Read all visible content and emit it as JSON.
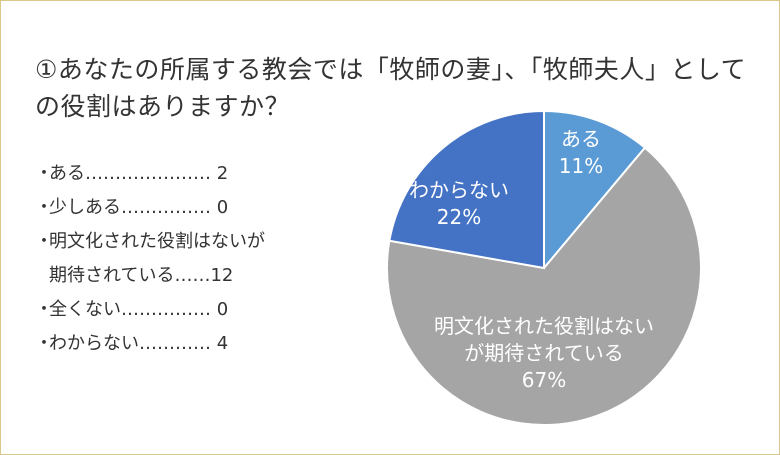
{
  "title": "①あなたの所属する教会では「牧師の妻」、「牧師夫人」としての役割はありますか？",
  "legend": [
    {
      "bullet": "・",
      "label": "ある………………… ",
      "count": "2"
    },
    {
      "bullet": "・",
      "label": "少しある…………… ",
      "count": "0"
    },
    {
      "bullet": "・",
      "label": "明文化された役割はないが",
      "label2": "期待されている……",
      "count": "12"
    },
    {
      "bullet": "・",
      "label": "全くない…………… ",
      "count": "0"
    },
    {
      "bullet": "・",
      "label": "わからない………… ",
      "count": "4"
    }
  ],
  "chart_data": {
    "type": "pie",
    "slices": [
      {
        "label": "ある",
        "value": 2,
        "percent": "11%",
        "color": "#5b9bd5"
      },
      {
        "label": "明文化された役割はないが期待されている",
        "value": 12,
        "percent": "67%",
        "color": "#a5a5a5"
      },
      {
        "label": "わからない",
        "value": 4,
        "percent": "22%",
        "color": "#4472c4"
      }
    ],
    "slice_text": [
      {
        "lines": [
          "ある",
          "11%"
        ]
      },
      {
        "lines": [
          "明文化された役割はない",
          "が期待されている",
          "67%"
        ]
      },
      {
        "lines": [
          "わからない",
          "22%"
        ]
      }
    ]
  }
}
